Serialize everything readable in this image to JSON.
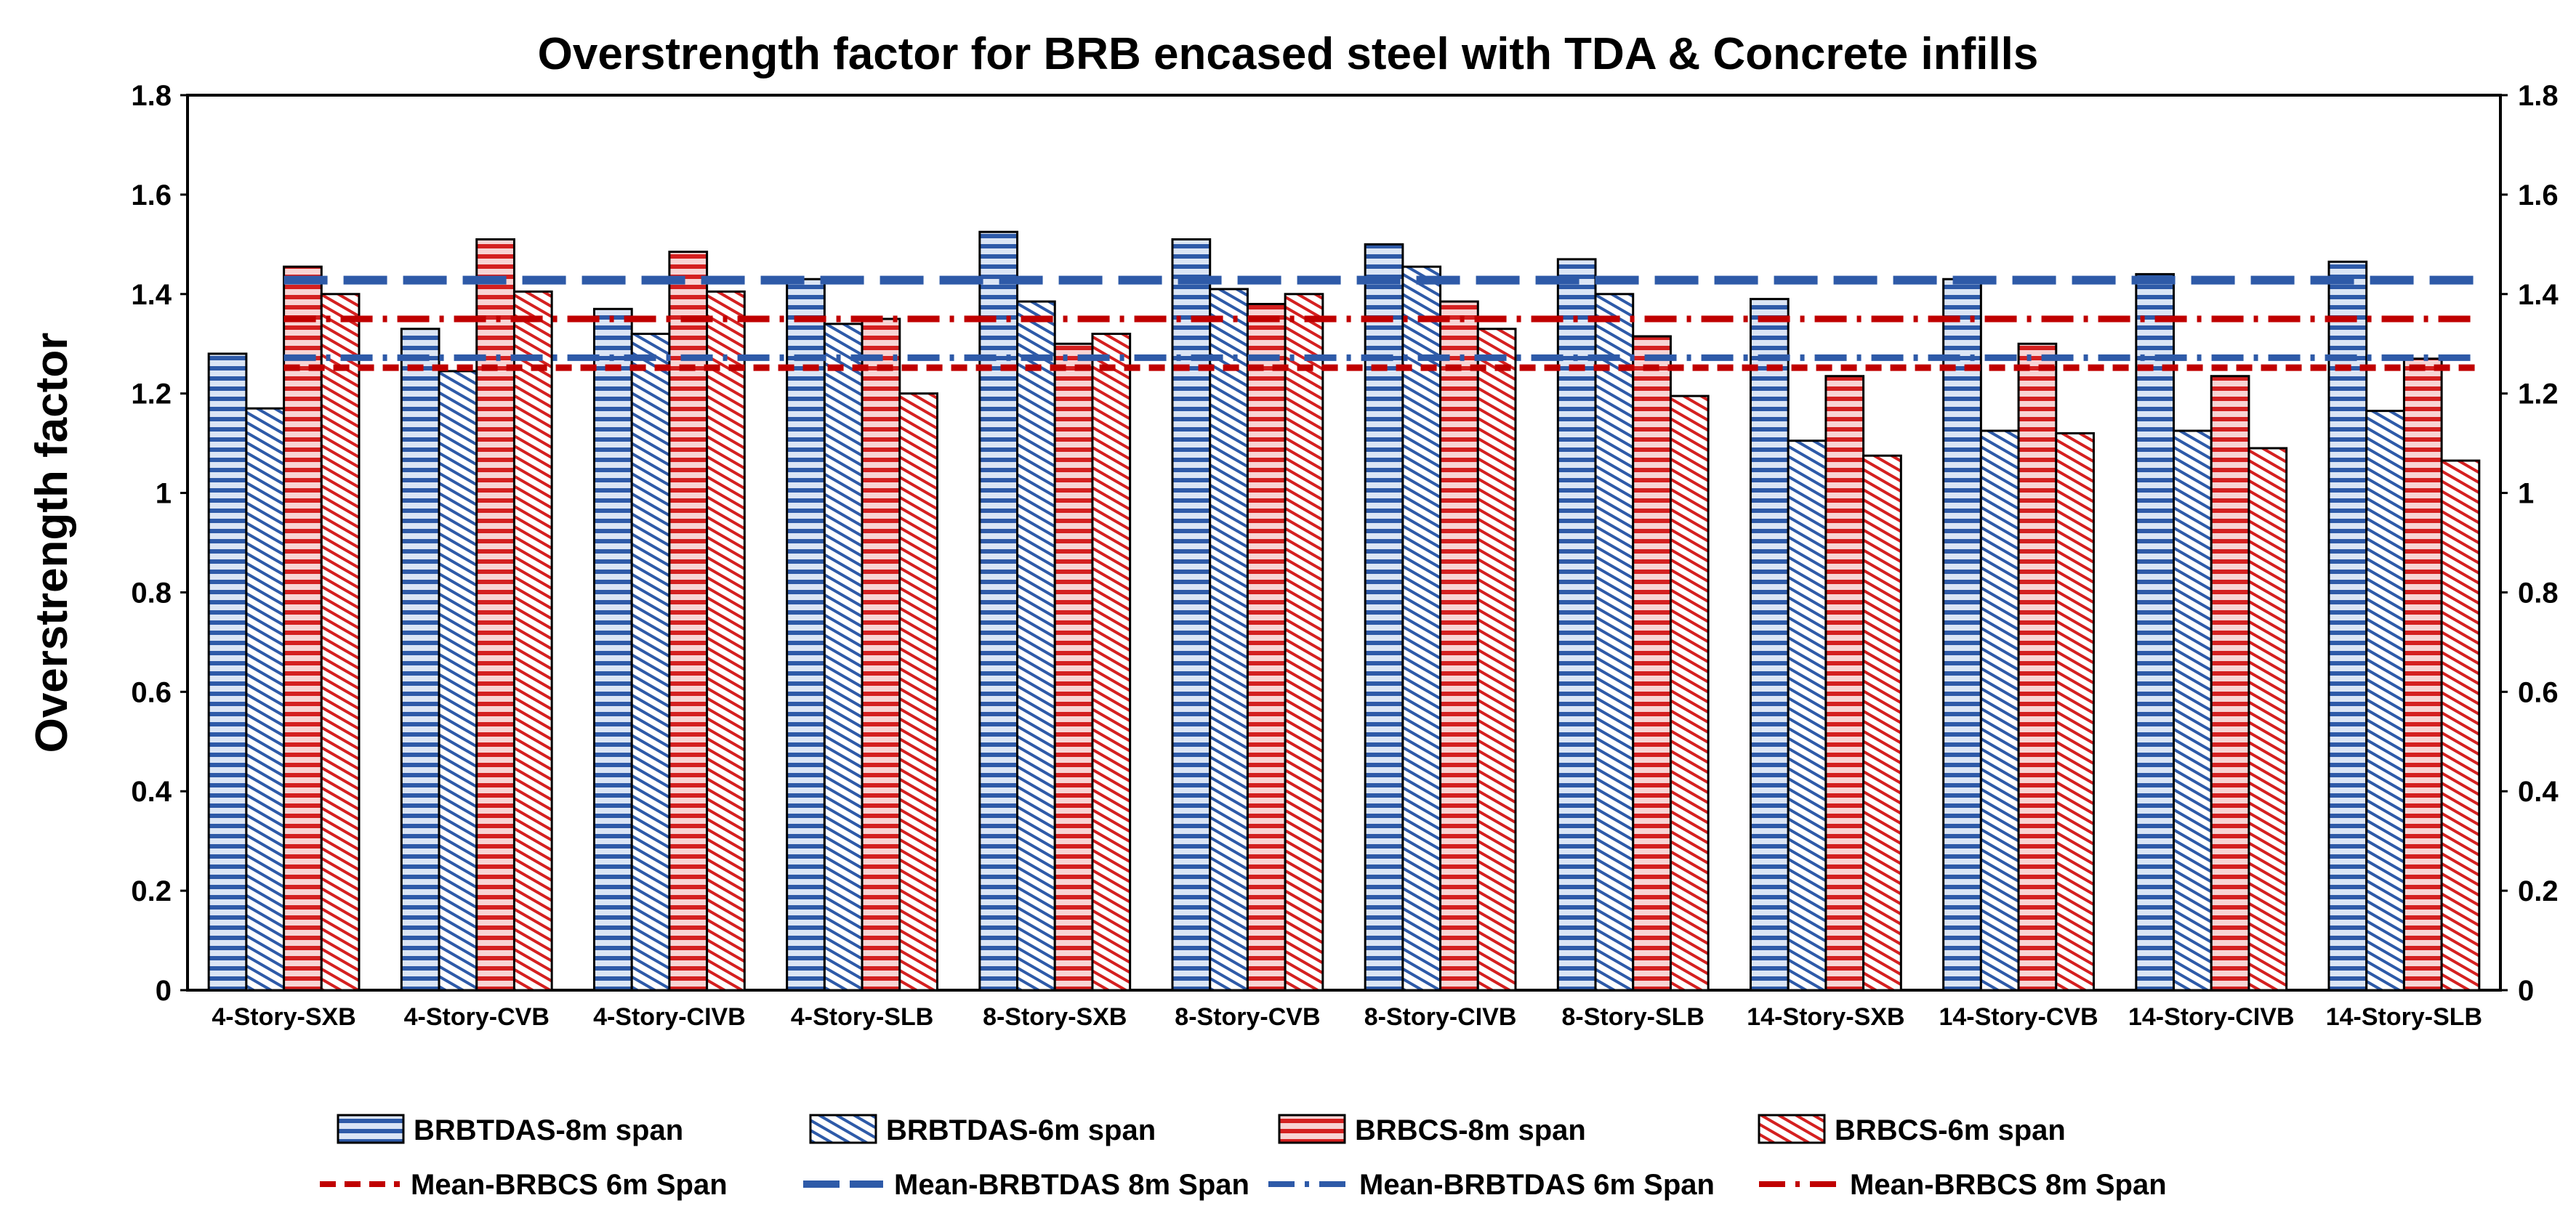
{
  "chart_data": {
    "type": "bar",
    "title": "Overstrength factor for BRB encased steel with TDA & Concrete infills",
    "xlabel": "",
    "ylabel": "Overstrength factor",
    "ylim": [
      0,
      1.8
    ],
    "yticks": [
      "0",
      "0.2",
      "0.4",
      "0.6",
      "0.8",
      "1",
      "1.2",
      "1.4",
      "1.6",
      "1.8"
    ],
    "secondary_y_axis": true,
    "grid": false,
    "legend_placement": "bottom",
    "categories": [
      "4-Story-SXB",
      "4-Story-CVB",
      "4-Story-CIVB",
      "4-Story-SLB",
      "8-Story-SXB",
      "8-Story-CVB",
      "8-Story-CIVB",
      "8-Story-SLB",
      "14-Story-SXB",
      "14-Story-CVB",
      "14-Story-CIVB",
      "14-Story-SLB"
    ],
    "series": [
      {
        "name": "BRBTDAS-8m span",
        "color": "#2e5aa8",
        "pattern": "horizontal-stripes",
        "values": [
          1.28,
          1.33,
          1.37,
          1.43,
          1.525,
          1.51,
          1.5,
          1.47,
          1.39,
          1.43,
          1.44,
          1.465
        ]
      },
      {
        "name": "BRBTDAS-6m span",
        "color": "#2e5aa8",
        "pattern": "diagonal-stripes",
        "values": [
          1.17,
          1.245,
          1.32,
          1.34,
          1.385,
          1.41,
          1.455,
          1.4,
          1.105,
          1.125,
          1.125,
          1.165
        ]
      },
      {
        "name": "BRBCS-8m span",
        "color": "#d42020",
        "pattern": "horizontal-stripes",
        "values": [
          1.455,
          1.51,
          1.485,
          1.35,
          1.3,
          1.38,
          1.385,
          1.315,
          1.235,
          1.3,
          1.235,
          1.27
        ]
      },
      {
        "name": "BRBCS-6m span",
        "color": "#d42020",
        "pattern": "diagonal-stripes",
        "values": [
          1.4,
          1.405,
          1.405,
          1.2,
          1.32,
          1.4,
          1.33,
          1.195,
          1.075,
          1.12,
          1.09,
          1.065
        ]
      }
    ],
    "mean_lines": [
      {
        "name": "Mean-BRBCS 6m Span",
        "color": "#c00000",
        "style": "dashed",
        "value": 1.252
      },
      {
        "name": "Mean-BRBTDAS 8m Span",
        "color": "#2e5aa8",
        "style": "long-dash",
        "value": 1.428
      },
      {
        "name": "Mean-BRBTDAS 6m Span",
        "color": "#2e5aa8",
        "style": "dash-dot",
        "value": 1.272
      },
      {
        "name": "Mean-BRBCS 8m Span",
        "color": "#c00000",
        "style": "dash-dot",
        "value": 1.35
      }
    ]
  }
}
